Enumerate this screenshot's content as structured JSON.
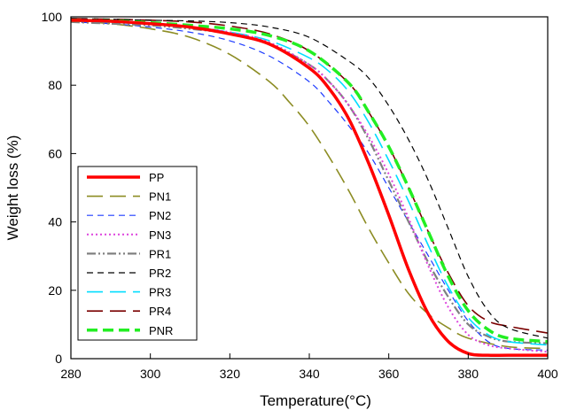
{
  "chart_data": {
    "type": "line",
    "title": "",
    "xlabel": "Temperature(°C)",
    "ylabel": "Weight loss (%)",
    "xlim": [
      280,
      400
    ],
    "ylim": [
      0,
      100
    ],
    "xticks": [
      280,
      300,
      320,
      340,
      360,
      380,
      400
    ],
    "yticks": [
      0,
      20,
      40,
      60,
      80,
      100
    ],
    "grid": false,
    "legend_position": "bottom-left",
    "series": [
      {
        "name": "PP",
        "color": "#ff0000",
        "dash": "solid",
        "x": [
          280,
          290,
          300,
          310,
          320,
          330,
          340,
          345,
          350,
          355,
          360,
          365,
          370,
          375,
          380,
          385,
          390,
          400
        ],
        "y": [
          99.0,
          98.7,
          98.0,
          97.0,
          95.0,
          92.0,
          85.0,
          79.0,
          70.0,
          57.0,
          42.0,
          26.0,
          13.0,
          5.0,
          1.5,
          1.0,
          1.0,
          1.0
        ]
      },
      {
        "name": "PN1",
        "color": "#8c8c23",
        "dash": "longdash",
        "x": [
          280,
          290,
          300,
          310,
          320,
          330,
          335,
          340,
          345,
          350,
          355,
          360,
          365,
          370,
          375,
          380,
          390,
          400
        ],
        "y": [
          98.8,
          98.0,
          96.5,
          94.0,
          89.0,
          81.0,
          75.0,
          68.0,
          59.0,
          49.0,
          38.0,
          28.0,
          19.0,
          13.0,
          9.0,
          6.0,
          3.5,
          3.0
        ]
      },
      {
        "name": "PN2",
        "color": "#1e3cff",
        "dash": "dash",
        "x": [
          280,
          290,
          300,
          310,
          320,
          330,
          340,
          345,
          350,
          355,
          360,
          365,
          370,
          375,
          380,
          385,
          390,
          400
        ],
        "y": [
          98.5,
          98.0,
          97.0,
          95.5,
          93.0,
          88.5,
          81.0,
          75.0,
          68.0,
          60.0,
          50.0,
          40.0,
          30.0,
          20.0,
          11.0,
          5.0,
          3.0,
          2.5
        ]
      },
      {
        "name": "PN3",
        "color": "#dd44dd",
        "dash": "dot",
        "x": [
          280,
          290,
          300,
          310,
          320,
          330,
          340,
          345,
          350,
          355,
          360,
          365,
          370,
          375,
          380,
          385,
          390,
          400
        ],
        "y": [
          99.0,
          98.7,
          98.0,
          97.0,
          95.5,
          92.5,
          86.0,
          81.0,
          74.0,
          65.0,
          54.0,
          41.0,
          27.0,
          15.0,
          7.0,
          4.0,
          3.0,
          2.0
        ]
      },
      {
        "name": "PR1",
        "color": "#808080",
        "dash": "dashdotdot",
        "x": [
          280,
          290,
          300,
          310,
          320,
          330,
          340,
          345,
          350,
          355,
          360,
          365,
          370,
          375,
          380,
          385,
          390,
          400
        ],
        "y": [
          98.5,
          98.0,
          97.5,
          96.5,
          95.0,
          92.0,
          86.0,
          81.0,
          74.0,
          64.0,
          52.0,
          40.0,
          28.0,
          18.0,
          10.0,
          6.5,
          5.0,
          4.5
        ]
      },
      {
        "name": "PR2",
        "color": "#000000",
        "dash": "dash",
        "x": [
          280,
          290,
          300,
          310,
          320,
          330,
          340,
          350,
          355,
          360,
          365,
          370,
          375,
          380,
          385,
          390,
          400
        ],
        "y": [
          99.5,
          99.3,
          99.0,
          98.8,
          98.3,
          97.0,
          94.0,
          87.0,
          82.0,
          74.0,
          64.0,
          52.0,
          38.0,
          24.0,
          14.0,
          9.0,
          6.0
        ]
      },
      {
        "name": "PR3",
        "color": "#00ddff",
        "dash": "longdash",
        "x": [
          280,
          290,
          300,
          310,
          320,
          330,
          340,
          345,
          350,
          355,
          360,
          365,
          370,
          375,
          380,
          385,
          390,
          400
        ],
        "y": [
          98.8,
          98.4,
          97.8,
          97.0,
          95.5,
          93.0,
          88.0,
          84.0,
          78.0,
          69.0,
          58.0,
          46.0,
          33.0,
          21.0,
          12.0,
          7.0,
          5.0,
          4.0
        ]
      },
      {
        "name": "PR4",
        "color": "#7a0000",
        "dash": "longdash",
        "x": [
          280,
          290,
          300,
          310,
          320,
          330,
          340,
          350,
          355,
          360,
          365,
          370,
          375,
          380,
          385,
          390,
          400
        ],
        "y": [
          99.5,
          99.3,
          99.0,
          98.5,
          97.3,
          95.0,
          90.0,
          80.5,
          72.0,
          62.0,
          50.0,
          37.0,
          25.0,
          15.5,
          11.0,
          9.5,
          7.5
        ]
      },
      {
        "name": "PNR",
        "color": "#22ee22",
        "dash": "thickdash",
        "x": [
          280,
          290,
          300,
          310,
          320,
          330,
          340,
          350,
          355,
          360,
          365,
          370,
          375,
          380,
          385,
          390,
          400
        ],
        "y": [
          99.0,
          98.8,
          98.3,
          97.5,
          96.5,
          94.5,
          90.0,
          80.5,
          72.0,
          62.0,
          50.0,
          37.0,
          24.0,
          14.0,
          8.5,
          6.0,
          5.0
        ]
      }
    ]
  }
}
